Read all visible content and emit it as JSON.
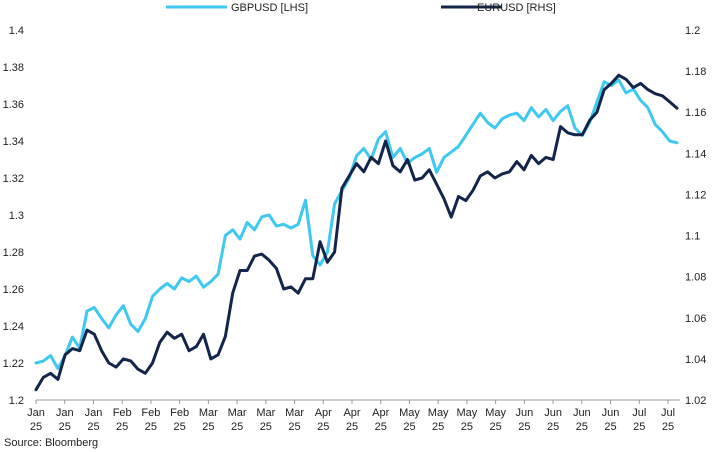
{
  "source_text": "Source: Bloomberg",
  "chart_data": {
    "type": "line",
    "legend_position": "top-center",
    "grid": false,
    "y_left": {
      "ylim": [
        1.2,
        1.4
      ],
      "ticks": [
        "1.2",
        "1.22",
        "1.24",
        "1.26",
        "1.28",
        "1.3",
        "1.32",
        "1.34",
        "1.36",
        "1.38",
        "1.4"
      ]
    },
    "y_right": {
      "ylim": [
        1.02,
        1.2
      ],
      "ticks": [
        "1.02",
        "1.04",
        "1.06",
        "1.08",
        "1.1",
        "1.12",
        "1.14",
        "1.16",
        "1.18",
        "1.2"
      ]
    },
    "x_tick_labels": [
      [
        "Jan",
        "25"
      ],
      [
        "Jan",
        "25"
      ],
      [
        "Jan",
        "25"
      ],
      [
        "Feb",
        "25"
      ],
      [
        "Feb",
        "25"
      ],
      [
        "Feb",
        "25"
      ],
      [
        "Mar",
        "25"
      ],
      [
        "Mar",
        "25"
      ],
      [
        "Mar",
        "25"
      ],
      [
        "Mar",
        "25"
      ],
      [
        "Apr",
        "25"
      ],
      [
        "Apr",
        "25"
      ],
      [
        "Apr",
        "25"
      ],
      [
        "May",
        "25"
      ],
      [
        "May",
        "25"
      ],
      [
        "May",
        "25"
      ],
      [
        "May",
        "25"
      ],
      [
        "Jun",
        "25"
      ],
      [
        "Jun",
        "25"
      ],
      [
        "Jun",
        "25"
      ],
      [
        "Jun",
        "25"
      ],
      [
        "Jul",
        "25"
      ],
      [
        "Jul",
        "25"
      ]
    ],
    "series": [
      {
        "name": "GBPUSD [LHS]",
        "axis": "left",
        "color": "#3fc8f0",
        "values": [
          1.22,
          1.221,
          1.224,
          1.217,
          1.224,
          1.234,
          1.228,
          1.248,
          1.25,
          1.244,
          1.239,
          1.246,
          1.251,
          1.241,
          1.237,
          1.244,
          1.256,
          1.26,
          1.263,
          1.26,
          1.266,
          1.264,
          1.267,
          1.261,
          1.264,
          1.268,
          1.289,
          1.292,
          1.287,
          1.296,
          1.292,
          1.299,
          1.3,
          1.294,
          1.295,
          1.293,
          1.295,
          1.308,
          1.278,
          1.273,
          1.28,
          1.306,
          1.313,
          1.32,
          1.332,
          1.336,
          1.33,
          1.341,
          1.345,
          1.331,
          1.336,
          1.328,
          1.331,
          1.333,
          1.336,
          1.323,
          1.331,
          1.334,
          1.337,
          1.343,
          1.349,
          1.355,
          1.35,
          1.347,
          1.352,
          1.354,
          1.355,
          1.351,
          1.358,
          1.353,
          1.357,
          1.351,
          1.356,
          1.359,
          1.347,
          1.343,
          1.35,
          1.361,
          1.372,
          1.37,
          1.373,
          1.366,
          1.368,
          1.362,
          1.358,
          1.349,
          1.345,
          1.34,
          1.339
        ]
      },
      {
        "name": "EURUSD [RHS]",
        "axis": "right",
        "color": "#13254a",
        "values": [
          1.025,
          1.031,
          1.033,
          1.03,
          1.042,
          1.045,
          1.044,
          1.054,
          1.052,
          1.044,
          1.038,
          1.036,
          1.04,
          1.039,
          1.035,
          1.033,
          1.038,
          1.048,
          1.053,
          1.05,
          1.052,
          1.044,
          1.046,
          1.052,
          1.04,
          1.042,
          1.051,
          1.072,
          1.083,
          1.083,
          1.09,
          1.091,
          1.088,
          1.084,
          1.074,
          1.075,
          1.072,
          1.079,
          1.079,
          1.097,
          1.087,
          1.092,
          1.123,
          1.129,
          1.135,
          1.131,
          1.138,
          1.135,
          1.146,
          1.134,
          1.131,
          1.137,
          1.127,
          1.128,
          1.132,
          1.125,
          1.118,
          1.109,
          1.119,
          1.117,
          1.122,
          1.129,
          1.131,
          1.128,
          1.13,
          1.131,
          1.136,
          1.132,
          1.139,
          1.135,
          1.138,
          1.137,
          1.153,
          1.15,
          1.149,
          1.149,
          1.156,
          1.16,
          1.171,
          1.174,
          1.178,
          1.176,
          1.172,
          1.174,
          1.171,
          1.169,
          1.168,
          1.165,
          1.162
        ]
      }
    ]
  }
}
